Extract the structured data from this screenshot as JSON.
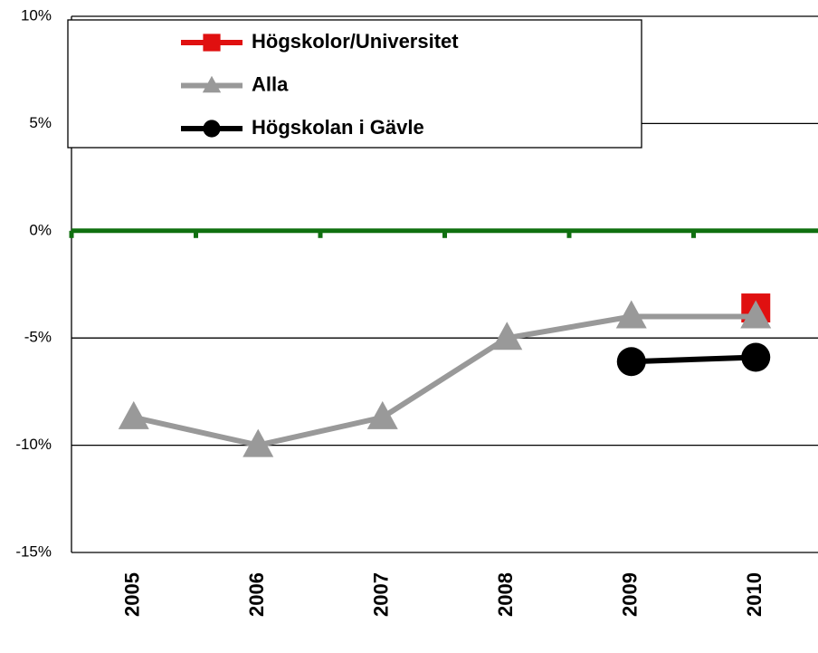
{
  "chart_data": {
    "type": "line",
    "categories": [
      "2005",
      "2006",
      "2007",
      "2008",
      "2009",
      "2010"
    ],
    "series": [
      {
        "name": "Högskolor/Universitet",
        "color": "#e01010",
        "marker": "square",
        "values": [
          null,
          null,
          null,
          null,
          null,
          -3.6
        ]
      },
      {
        "name": "Alla",
        "color": "#999999",
        "marker": "triangle",
        "values": [
          -8.7,
          -10,
          -8.7,
          -5,
          -4,
          -4
        ]
      },
      {
        "name": "Högskolan i Gävle",
        "color": "#000000",
        "marker": "circle",
        "values": [
          null,
          null,
          null,
          null,
          -6.1,
          -5.9
        ]
      }
    ],
    "ylim": [
      -15,
      10
    ],
    "yticks": [
      {
        "value": -15,
        "label": "-15%"
      },
      {
        "value": -10,
        "label": "-10%"
      },
      {
        "value": -5,
        "label": "-5%"
      },
      {
        "value": 0,
        "label": "0%"
      },
      {
        "value": 5,
        "label": "5%"
      },
      {
        "value": 10,
        "label": "10%"
      }
    ],
    "grid": true,
    "axis_color": "#107010",
    "legend": "top-left"
  }
}
